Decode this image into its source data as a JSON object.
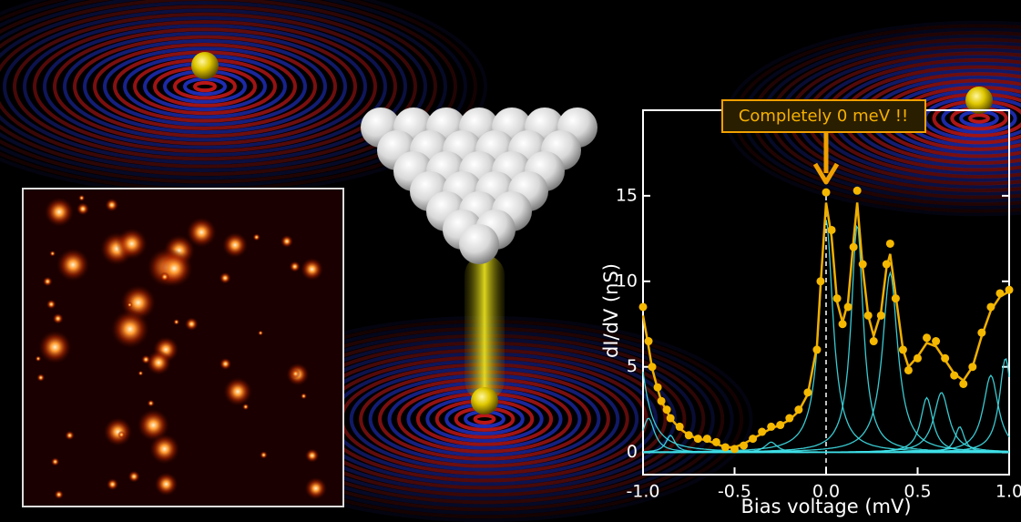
{
  "chart_data": {
    "type": "scatter",
    "annotation": "Completely 0 meV !!",
    "xlabel": "Bias voltage (mV)",
    "ylabel": "dI/dV (nS)",
    "xlim": [
      -1.0,
      1.0
    ],
    "ylim": [
      -1.3,
      20
    ],
    "xticks": [
      {
        "value": -1.0,
        "label": "-1.0"
      },
      -0.5,
      {
        "value": 0,
        "label": "0.0"
      },
      0.5,
      {
        "value": 1.0,
        "label": "1.0"
      }
    ],
    "yticks": [
      0,
      5,
      10,
      15
    ],
    "x": [
      -1.0,
      -0.97,
      -0.95,
      -0.92,
      -0.9,
      -0.87,
      -0.85,
      -0.8,
      -0.75,
      -0.7,
      -0.65,
      -0.6,
      -0.55,
      -0.5,
      -0.45,
      -0.4,
      -0.35,
      -0.3,
      -0.25,
      -0.2,
      -0.15,
      -0.1,
      -0.05,
      -0.03,
      0.0,
      0.03,
      0.06,
      0.09,
      0.12,
      0.15,
      0.17,
      0.2,
      0.23,
      0.26,
      0.3,
      0.33,
      0.35,
      0.38,
      0.42,
      0.45,
      0.5,
      0.55,
      0.6,
      0.65,
      0.7,
      0.75,
      0.8,
      0.85,
      0.9,
      0.95,
      1.0
    ],
    "series": [
      {
        "color": "#f5b800",
        "style": "markers",
        "values": [
          8.5,
          6.5,
          5.0,
          3.8,
          3.0,
          2.5,
          2.0,
          1.5,
          1.0,
          0.8,
          0.8,
          0.6,
          0.3,
          0.2,
          0.4,
          0.8,
          1.2,
          1.5,
          1.6,
          2.0,
          2.5,
          3.5,
          6.0,
          10.0,
          15.2,
          13.0,
          9.0,
          7.5,
          8.5,
          12.0,
          15.3,
          11.0,
          8.0,
          6.5,
          8.0,
          11.0,
          12.2,
          9.0,
          6.0,
          4.8,
          5.5,
          6.7,
          6.5,
          5.5,
          4.5,
          4.0,
          5.0,
          7.0,
          8.5,
          9.3,
          9.5
        ]
      },
      {
        "color": "#f0b000",
        "style": "line",
        "values": [
          8.0,
          6.2,
          4.9,
          3.7,
          3.0,
          2.4,
          2.0,
          1.4,
          1.0,
          0.8,
          0.7,
          0.5,
          0.3,
          0.3,
          0.5,
          0.8,
          1.1,
          1.4,
          1.6,
          1.9,
          2.4,
          3.4,
          6.2,
          9.8,
          14.6,
          12.6,
          8.8,
          7.6,
          8.8,
          12.4,
          14.6,
          10.8,
          8.0,
          6.8,
          8.2,
          10.8,
          11.6,
          9.2,
          6.0,
          5.0,
          5.6,
          6.4,
          6.2,
          5.4,
          4.6,
          4.2,
          5.0,
          6.8,
          8.3,
          9.1,
          9.4
        ]
      }
    ],
    "components": {
      "color": "#3fe0e8",
      "items": [
        {
          "center": -1.05,
          "height": 8.0,
          "width": 0.06
        },
        {
          "center": -0.97,
          "height": 2.0,
          "width": 0.04
        },
        {
          "center": -0.85,
          "height": 1.0,
          "width": 0.03
        },
        {
          "center": -0.3,
          "height": 0.6,
          "width": 0.04
        },
        {
          "center": 0.0,
          "height": 13.6,
          "width": 0.045
        },
        {
          "center": 0.17,
          "height": 13.3,
          "width": 0.04
        },
        {
          "center": 0.35,
          "height": 10.5,
          "width": 0.05
        },
        {
          "center": 0.55,
          "height": 3.2,
          "width": 0.04
        },
        {
          "center": 0.63,
          "height": 3.5,
          "width": 0.05
        },
        {
          "center": 0.73,
          "height": 1.5,
          "width": 0.03
        },
        {
          "center": 0.9,
          "height": 4.5,
          "width": 0.05
        },
        {
          "center": 0.98,
          "height": 5.5,
          "width": 0.04
        }
      ]
    }
  }
}
